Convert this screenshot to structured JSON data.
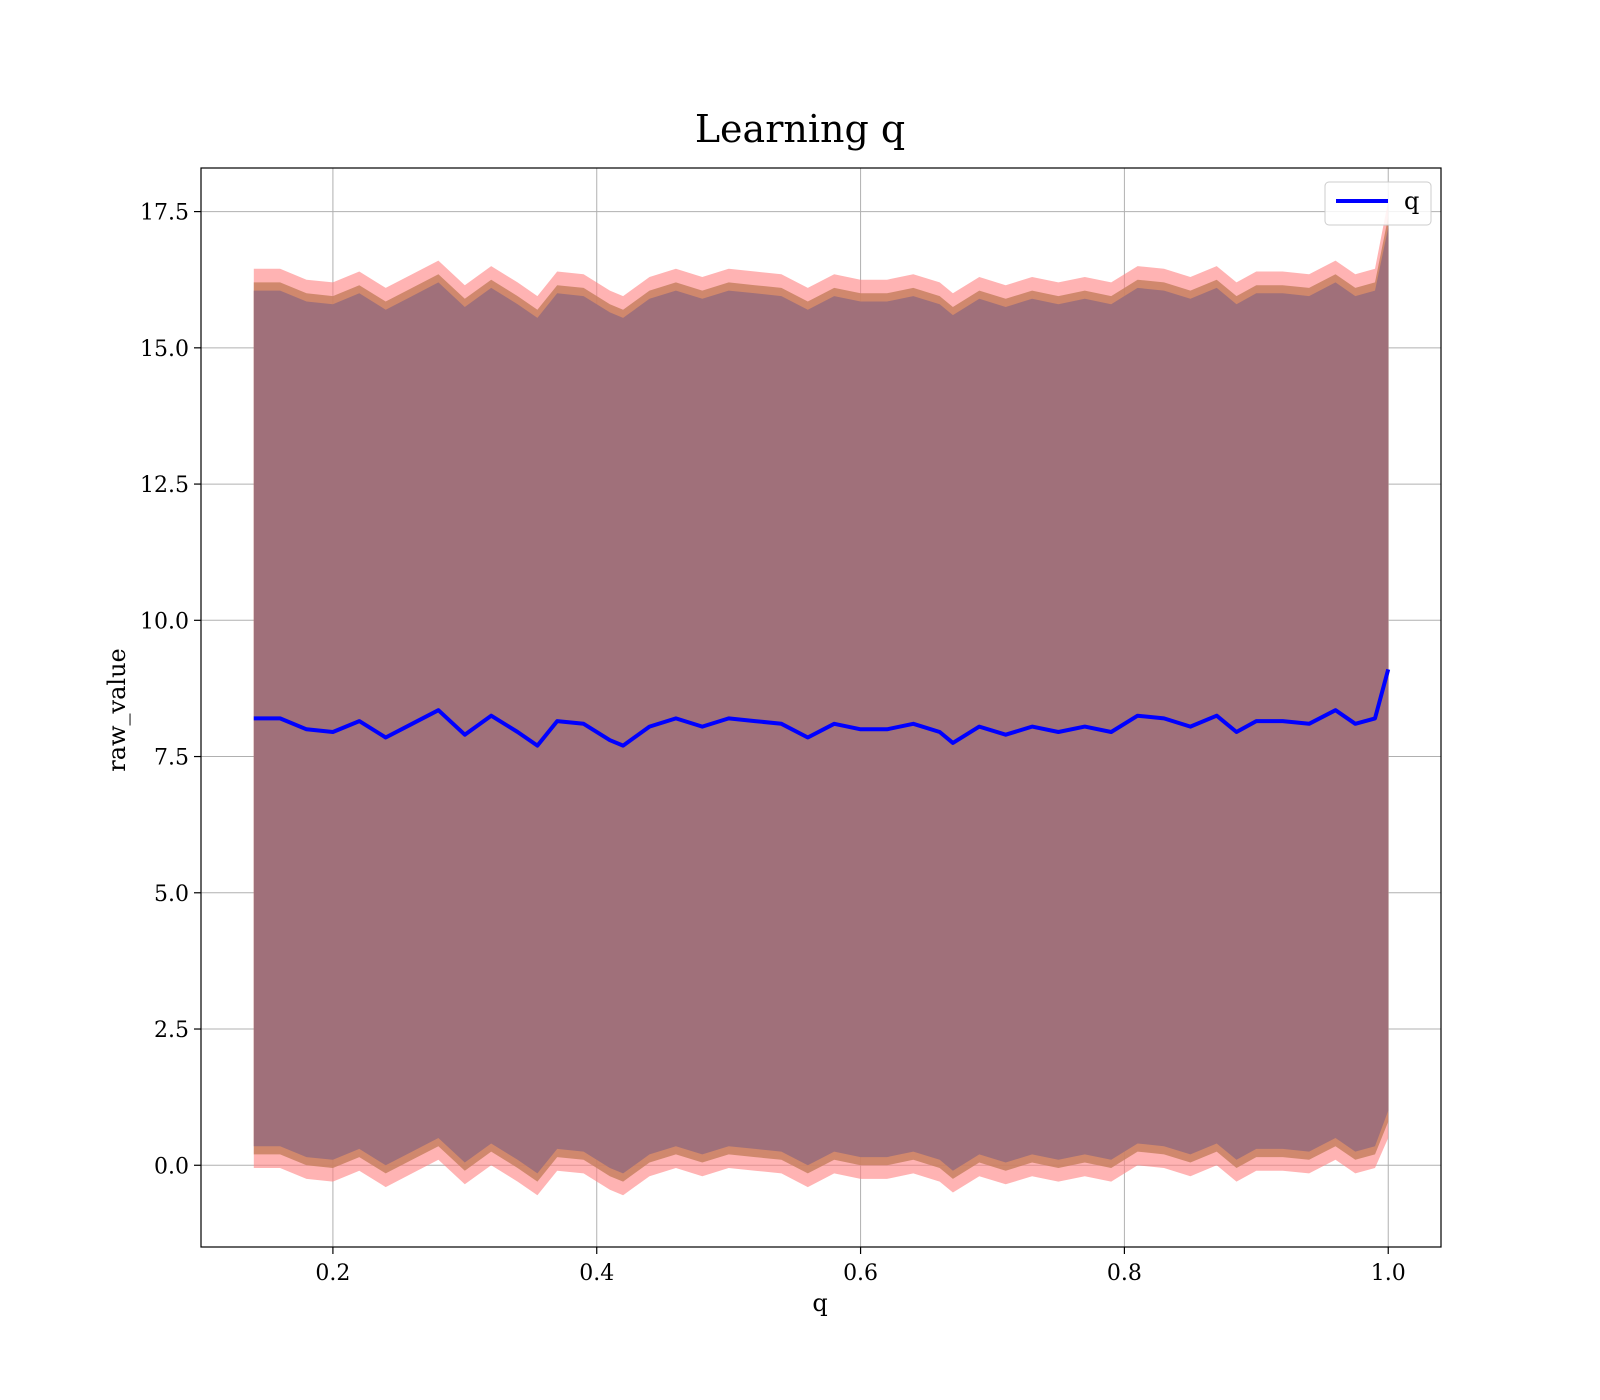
{
  "chart_data": {
    "type": "line",
    "title": "Learning q",
    "xlabel": "q",
    "ylabel": "raw_value",
    "xlim": [
      0.1,
      1.04
    ],
    "ylim": [
      -1.5,
      18.3
    ],
    "xticks": [
      0.2,
      0.4,
      0.6,
      0.8,
      1.0
    ],
    "yticks": [
      0.0,
      2.5,
      5.0,
      7.5,
      10.0,
      12.5,
      15.0,
      17.5
    ],
    "xtick_labels": [
      "0.2",
      "0.4",
      "0.6",
      "0.8",
      "1.0"
    ],
    "ytick_labels": [
      "0.0",
      "2.5",
      "5.0",
      "7.5",
      "10.0",
      "12.5",
      "15.0",
      "17.5"
    ],
    "grid": true,
    "legend": {
      "placement": "top-right",
      "entries": [
        "q"
      ]
    },
    "colors": {
      "line": "#0000ff",
      "band_outer": "#ff8080",
      "band_mid": "#c88060",
      "band_inner": "#a0707a"
    },
    "series": [
      {
        "name": "q",
        "x": [
          0.14,
          0.16,
          0.18,
          0.2,
          0.22,
          0.24,
          0.26,
          0.28,
          0.3,
          0.32,
          0.34,
          0.355,
          0.37,
          0.39,
          0.41,
          0.42,
          0.44,
          0.46,
          0.48,
          0.5,
          0.52,
          0.54,
          0.56,
          0.58,
          0.6,
          0.62,
          0.64,
          0.66,
          0.67,
          0.69,
          0.71,
          0.73,
          0.75,
          0.77,
          0.79,
          0.81,
          0.83,
          0.85,
          0.87,
          0.885,
          0.9,
          0.92,
          0.94,
          0.96,
          0.975,
          0.99,
          1.0
        ],
        "y": [
          8.2,
          8.2,
          8.0,
          7.95,
          8.15,
          7.85,
          8.1,
          8.35,
          7.9,
          8.25,
          7.95,
          7.7,
          8.15,
          8.1,
          7.8,
          7.7,
          8.05,
          8.2,
          8.05,
          8.2,
          8.15,
          8.1,
          7.85,
          8.1,
          8.0,
          8.0,
          8.1,
          7.95,
          7.75,
          8.05,
          7.9,
          8.05,
          7.95,
          8.05,
          7.95,
          8.25,
          8.2,
          8.05,
          8.25,
          7.95,
          8.15,
          8.15,
          8.1,
          8.35,
          8.1,
          8.2,
          9.1
        ],
        "std_inner": [
          7.85,
          7.85,
          7.85,
          7.85,
          7.85,
          7.85,
          7.85,
          7.85,
          7.85,
          7.85,
          7.85,
          7.85,
          7.85,
          7.85,
          7.85,
          7.85,
          7.85,
          7.85,
          7.85,
          7.85,
          7.85,
          7.85,
          7.85,
          7.85,
          7.85,
          7.85,
          7.85,
          7.85,
          7.85,
          7.85,
          7.85,
          7.85,
          7.85,
          7.85,
          7.85,
          7.85,
          7.85,
          7.85,
          7.85,
          7.85,
          7.85,
          7.85,
          7.85,
          7.85,
          7.85,
          7.85,
          8.1
        ],
        "std_mid": [
          8.0,
          8.0,
          8.0,
          8.0,
          8.0,
          8.0,
          8.0,
          8.0,
          8.0,
          8.0,
          8.0,
          8.0,
          8.0,
          8.0,
          8.0,
          8.0,
          8.0,
          8.0,
          8.0,
          8.0,
          8.0,
          8.0,
          8.0,
          8.0,
          8.0,
          8.0,
          8.0,
          8.0,
          8.0,
          8.0,
          8.0,
          8.0,
          8.0,
          8.0,
          8.0,
          8.0,
          8.0,
          8.0,
          8.0,
          8.0,
          8.0,
          8.0,
          8.0,
          8.0,
          8.0,
          8.0,
          8.3
        ],
        "std_outer": [
          8.25,
          8.25,
          8.25,
          8.25,
          8.25,
          8.25,
          8.25,
          8.25,
          8.25,
          8.25,
          8.25,
          8.25,
          8.25,
          8.25,
          8.25,
          8.25,
          8.25,
          8.25,
          8.25,
          8.25,
          8.25,
          8.25,
          8.25,
          8.25,
          8.25,
          8.25,
          8.25,
          8.25,
          8.25,
          8.25,
          8.25,
          8.25,
          8.25,
          8.25,
          8.25,
          8.25,
          8.25,
          8.25,
          8.25,
          8.25,
          8.25,
          8.25,
          8.25,
          8.25,
          8.25,
          8.25,
          8.6
        ]
      }
    ]
  }
}
